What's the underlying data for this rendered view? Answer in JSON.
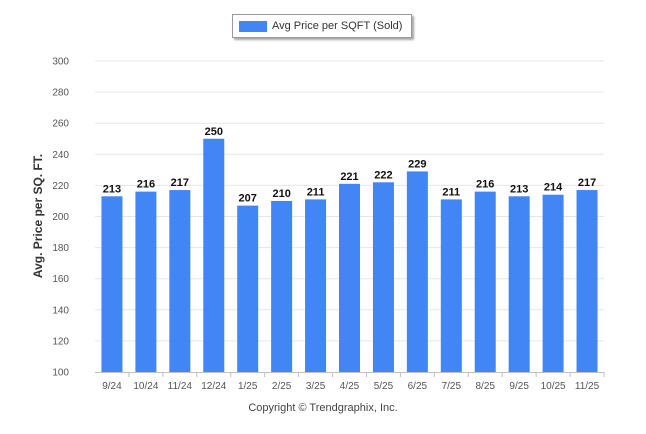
{
  "chart_data": {
    "type": "bar",
    "categories": [
      "9/24",
      "10/24",
      "11/24",
      "12/24",
      "1/25",
      "2/25",
      "3/25",
      "4/25",
      "5/25",
      "6/25",
      "7/25",
      "8/25",
      "9/25",
      "10/25",
      "11/25"
    ],
    "series": [
      {
        "name": "Avg Price per SQFT (Sold)",
        "values": [
          213,
          216,
          217,
          250,
          207,
          210,
          211,
          221,
          222,
          229,
          211,
          216,
          213,
          214,
          217
        ],
        "color": "#4285f4"
      }
    ],
    "ylabel": "Avg. Price per SQ. FT.",
    "ylim": [
      100,
      300
    ],
    "yticks": [
      100,
      120,
      140,
      160,
      180,
      200,
      220,
      240,
      260,
      280,
      300
    ],
    "data_labels": true,
    "legend_position": "top-center",
    "grid": true
  },
  "footer": "Copyright © Trendgraphix, Inc."
}
